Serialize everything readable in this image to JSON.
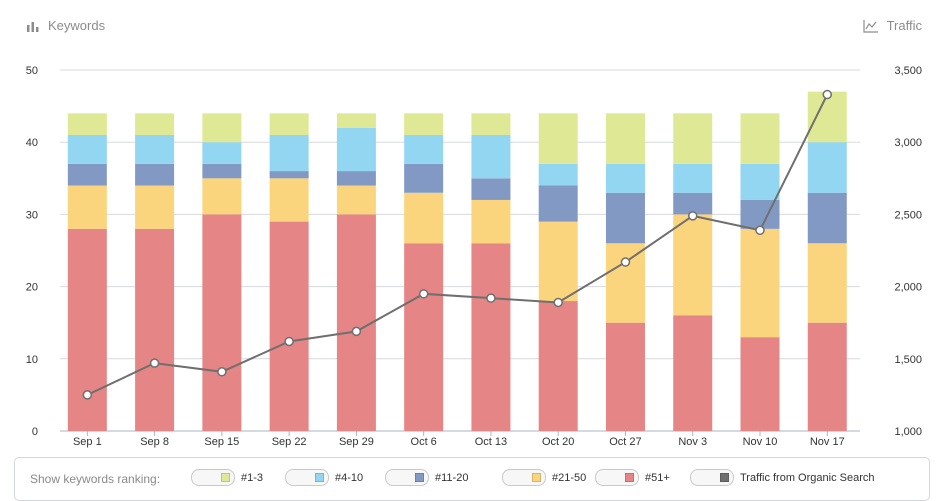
{
  "header": {
    "left_label": "Keywords",
    "left_icon": "bar-chart-icon",
    "right_label": "Traffic",
    "right_icon": "line-chart-icon"
  },
  "legend": {
    "title": "Show keywords ranking:",
    "items": [
      {
        "label": "#1-3",
        "color": "#dfe895"
      },
      {
        "label": "#4-10",
        "color": "#92d6f2"
      },
      {
        "label": "#11-20",
        "color": "#8299c4"
      },
      {
        "label": "#21-50",
        "color": "#fbd47e"
      },
      {
        "label": "#51+",
        "color": "#e58586"
      },
      {
        "label": "Traffic from Organic Search",
        "color": "#6f6f6f"
      }
    ]
  },
  "chart_data": {
    "type": "bar",
    "stacked": true,
    "categories": [
      "Sep 1",
      "Sep 8",
      "Sep 15",
      "Sep 22",
      "Sep 29",
      "Oct 6",
      "Oct 13",
      "Oct 20",
      "Oct 27",
      "Nov 3",
      "Nov 10",
      "Nov 17"
    ],
    "left_axis": {
      "ylim": [
        0,
        50
      ],
      "ticks": [
        "0",
        "10",
        "20",
        "30",
        "40",
        "50"
      ]
    },
    "right_axis": {
      "ylim": [
        1000,
        3500
      ],
      "ticks": [
        "1,000",
        "1,500",
        "2,000",
        "2,500",
        "3,000",
        "3,500"
      ]
    },
    "grid": true,
    "series": [
      {
        "name": "#51+",
        "color": "#e58586",
        "values": [
          28,
          28,
          30,
          29,
          30,
          26,
          26,
          18,
          15,
          16,
          13,
          15
        ]
      },
      {
        "name": "#21-50",
        "color": "#fbd47e",
        "values": [
          6,
          6,
          5,
          6,
          4,
          7,
          6,
          11,
          11,
          14,
          15,
          11
        ]
      },
      {
        "name": "#11-20",
        "color": "#8299c4",
        "values": [
          3,
          3,
          2,
          1,
          2,
          4,
          3,
          5,
          7,
          3,
          4,
          7
        ]
      },
      {
        "name": "#4-10",
        "color": "#92d6f2",
        "values": [
          4,
          4,
          3,
          5,
          6,
          4,
          6,
          3,
          4,
          4,
          5,
          7
        ]
      },
      {
        "name": "#1-3",
        "color": "#dfe895",
        "values": [
          3,
          3,
          4,
          3,
          2,
          3,
          3,
          7,
          7,
          7,
          7,
          7
        ]
      }
    ],
    "line_series": {
      "name": "Traffic from Organic Search",
      "color": "#6f6f6f",
      "axis": "right",
      "values": [
        1250,
        1470,
        1410,
        1620,
        1690,
        1950,
        1920,
        1890,
        2170,
        2490,
        2390,
        3330
      ]
    }
  }
}
